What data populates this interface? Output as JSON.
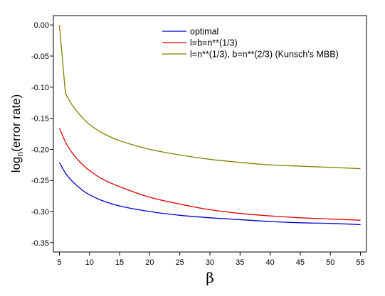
{
  "chart_data": {
    "type": "line",
    "xlabel": "β",
    "ylabel": {
      "main": "log",
      "sub": "n",
      "rest": "(error rate)"
    },
    "xlim": [
      4,
      56
    ],
    "ylim": [
      -0.365,
      0.015
    ],
    "xticks": [
      5,
      10,
      15,
      20,
      25,
      30,
      35,
      40,
      45,
      50,
      55
    ],
    "yticks": [
      0.0,
      -0.05,
      -0.1,
      -0.15,
      -0.2,
      -0.25,
      -0.3,
      -0.35
    ],
    "ytick_labels": [
      "0.00",
      "-0.05",
      "-0.10",
      "-0.15",
      "-0.20",
      "-0.25",
      "-0.30",
      "-0.35"
    ],
    "legend_position": "top-right",
    "series": [
      {
        "name": "optimal",
        "color": "#0000cc",
        "x": [
          5,
          6,
          7,
          8,
          9,
          10,
          12,
          15,
          20,
          25,
          30,
          35,
          40,
          45,
          50,
          55
        ],
        "y": [
          -0.221,
          -0.238,
          -0.25,
          -0.259,
          -0.267,
          -0.273,
          -0.282,
          -0.291,
          -0.3,
          -0.306,
          -0.31,
          -0.313,
          -0.316,
          -0.318,
          -0.319,
          -0.321
        ]
      },
      {
        "name": "l=b=n**(1/3)",
        "color": "#dd0000",
        "x": [
          5,
          6,
          7,
          8,
          9,
          10,
          12,
          15,
          20,
          25,
          30,
          35,
          40,
          45,
          50,
          55
        ],
        "y": [
          -0.166,
          -0.188,
          -0.204,
          -0.216,
          -0.226,
          -0.234,
          -0.247,
          -0.26,
          -0.277,
          -0.288,
          -0.297,
          -0.303,
          -0.307,
          -0.31,
          -0.312,
          -0.314
        ]
      },
      {
        "name": "l=n**(1/3), b=n**(2/3)  (Kunsch's MBB)",
        "color": "#808000",
        "x": [
          5,
          6,
          7,
          8,
          9,
          10,
          12,
          15,
          20,
          25,
          30,
          35,
          40,
          45,
          50,
          55
        ],
        "y": [
          0.0,
          -0.11,
          -0.127,
          -0.14,
          -0.151,
          -0.16,
          -0.173,
          -0.186,
          -0.2,
          -0.209,
          -0.216,
          -0.221,
          -0.225,
          -0.227,
          -0.229,
          -0.231
        ]
      }
    ]
  }
}
